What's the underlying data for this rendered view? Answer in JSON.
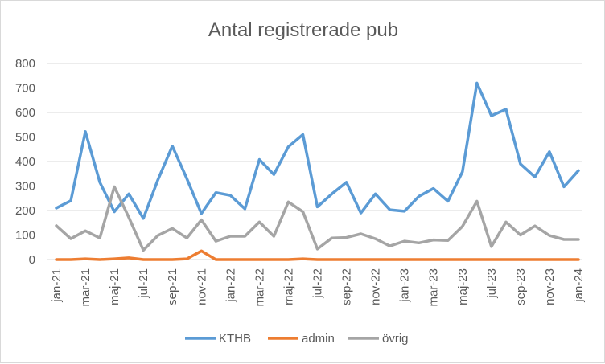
{
  "chart_data": {
    "type": "line",
    "title": "Antal registrerade pub",
    "xlabel": "",
    "ylabel": "",
    "ylim": [
      0,
      800
    ],
    "yticks": [
      "0",
      "100",
      "200",
      "300",
      "400",
      "500",
      "600",
      "700",
      "800"
    ],
    "grid": "horizontal",
    "legend_position": "bottom",
    "x": [
      "jan-21",
      "feb-21",
      "mar-21",
      "apr-21",
      "maj-21",
      "jun-21",
      "jul-21",
      "aug-21",
      "sep-21",
      "okt-21",
      "nov-21",
      "dec-21",
      "jan-22",
      "feb-22",
      "mar-22",
      "apr-22",
      "maj-22",
      "jun-22",
      "jul-22",
      "aug-22",
      "sep-22",
      "okt-22",
      "nov-22",
      "dec-22",
      "jan-23",
      "feb-23",
      "mar-23",
      "apr-23",
      "maj-23",
      "jun-23",
      "jul-23",
      "aug-23",
      "sep-23",
      "okt-23",
      "nov-23",
      "dec-23",
      "jan-24"
    ],
    "xtick_labels": [
      "jan-21",
      "mar-21",
      "maj-21",
      "jul-21",
      "sep-21",
      "nov-21",
      "jan-22",
      "mar-22",
      "maj-22",
      "jul-22",
      "sep-22",
      "nov-22",
      "jan-23",
      "mar-23",
      "maj-23",
      "jul-23",
      "sep-23",
      "nov-23",
      "jan-24"
    ],
    "series": [
      {
        "name": "KTHB",
        "color": "#5b9bd5",
        "values": [
          210,
          240,
          522,
          315,
          195,
          268,
          168,
          325,
          463,
          330,
          188,
          273,
          262,
          207,
          408,
          347,
          460,
          510,
          215,
          268,
          315,
          190,
          268,
          203,
          197,
          258,
          290,
          238,
          358,
          720,
          587,
          613,
          390,
          337,
          440,
          297,
          363
        ]
      },
      {
        "name": "admin",
        "color": "#ed7d31",
        "values": [
          0,
          0,
          3,
          0,
          3,
          7,
          0,
          0,
          0,
          3,
          35,
          0,
          0,
          0,
          0,
          0,
          0,
          3,
          0,
          0,
          0,
          0,
          0,
          0,
          0,
          0,
          0,
          0,
          0,
          0,
          0,
          0,
          0,
          0,
          0,
          0,
          0
        ]
      },
      {
        "name": "övrig",
        "color": "#a5a5a5",
        "values": [
          138,
          85,
          117,
          88,
          297,
          172,
          38,
          98,
          127,
          88,
          162,
          75,
          95,
          95,
          153,
          95,
          235,
          195,
          43,
          88,
          90,
          105,
          85,
          55,
          75,
          68,
          80,
          78,
          135,
          238,
          53,
          153,
          100,
          137,
          98,
          82,
          82
        ]
      }
    ]
  }
}
